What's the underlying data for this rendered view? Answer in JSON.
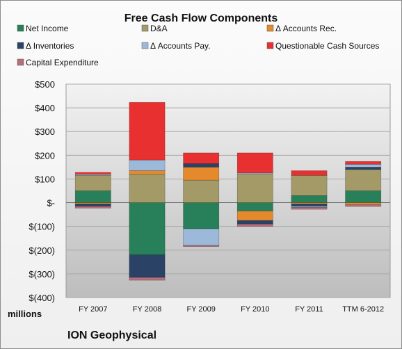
{
  "chart_data": {
    "type": "bar",
    "stacked": true,
    "title": "Free Cash Flow Components",
    "categories": [
      "FY 2007",
      "FY 2008",
      "FY 2009",
      "FY 2010",
      "FY 2011",
      "TTM 6-2012"
    ],
    "ylim": [
      -400,
      500
    ],
    "y_ticks": [
      -400,
      -300,
      -200,
      -100,
      0,
      100,
      200,
      300,
      400,
      500
    ],
    "y_tick_labels": [
      "$(400)",
      "$(300)",
      "$(200)",
      "$(100)",
      "$-",
      "$100",
      "$200",
      "$300",
      "$400",
      "$500"
    ],
    "ylabel": "millions",
    "grid": true,
    "legend_position": "top",
    "footer": "ION Geophysical",
    "series": [
      {
        "name": "Net Income",
        "color": "#27805a",
        "values": [
          50,
          -220,
          -110,
          -35,
          30,
          50
        ]
      },
      {
        "name": "D&A",
        "color": "#a39a68",
        "values": [
          65,
          120,
          95,
          120,
          85,
          90
        ]
      },
      {
        "name": "Δ Accounts Rec.",
        "color": "#e48a2c",
        "values": [
          -5,
          15,
          55,
          -40,
          -5,
          -8
        ]
      },
      {
        "name": "Δ Inventories",
        "color": "#2a4265",
        "values": [
          -10,
          -95,
          15,
          -15,
          -10,
          10
        ]
      },
      {
        "name": "Δ Accounts Pay.",
        "color": "#9cb9da",
        "values": [
          5,
          45,
          -70,
          5,
          -5,
          12
        ]
      },
      {
        "name": "Questionable Cash Sources",
        "color": "#e83030",
        "values": [
          8,
          243,
          45,
          85,
          20,
          12
        ]
      },
      {
        "name": "Capital Expenditure",
        "color": "#b76e7b",
        "values": [
          -8,
          -12,
          -5,
          -10,
          -8,
          -8
        ]
      }
    ]
  }
}
